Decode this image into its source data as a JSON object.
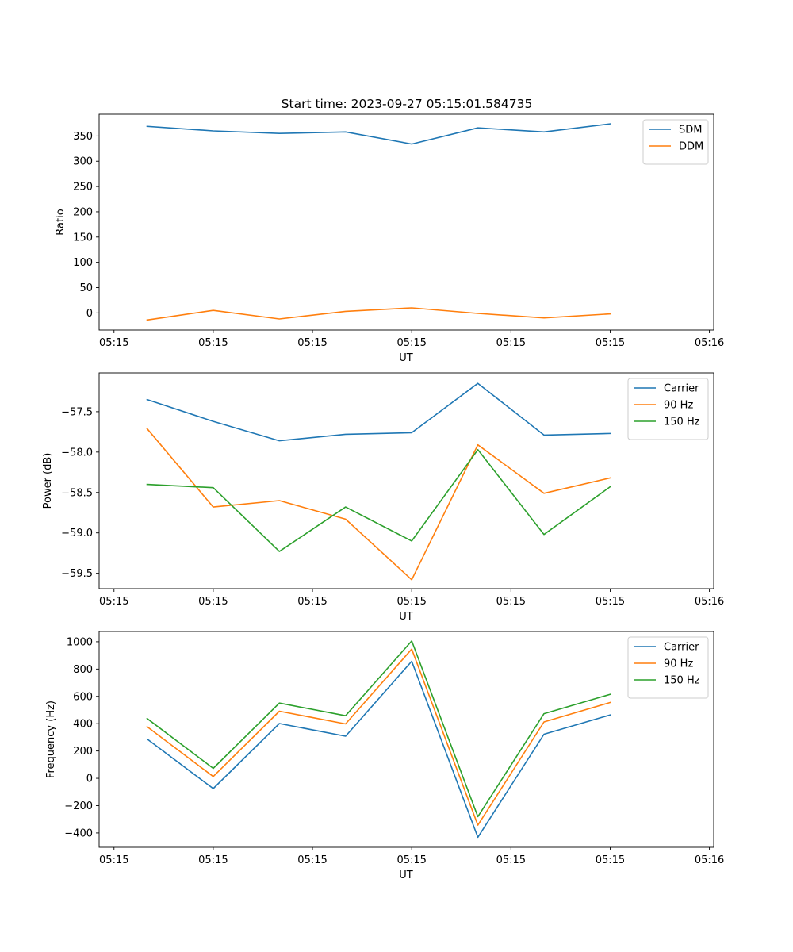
{
  "figure": {
    "title": "Start time: 2023-09-27 05:15:01.584735"
  },
  "chart_data": [
    {
      "type": "line",
      "title": "Start time: 2023-09-27 05:15:01.584735",
      "xlabel": "UT",
      "ylabel": "Ratio",
      "x": [
        1,
        2,
        3,
        4,
        5,
        6,
        7,
        8
      ],
      "xlim": [
        0.275,
        9.565
      ],
      "xticks": [
        0.5,
        2,
        3.5,
        5,
        6.5,
        8,
        9.5
      ],
      "xtick_labels": [
        "05:15",
        "05:15",
        "05:15",
        "05:15",
        "05:15",
        "05:15",
        "05:16"
      ],
      "ylim": [
        -34,
        393
      ],
      "yticks": [
        0,
        50,
        100,
        150,
        200,
        250,
        300,
        350
      ],
      "ytick_labels": [
        "0",
        "50",
        "100",
        "150",
        "200",
        "250",
        "300",
        "350"
      ],
      "legend": "top-right",
      "series": [
        {
          "name": "SDM",
          "color": "#1f77b4",
          "values": [
            369,
            360,
            355,
            358,
            334,
            366,
            358,
            374
          ]
        },
        {
          "name": "DDM",
          "color": "#ff7f0e",
          "values": [
            -14,
            5,
            -12,
            3,
            10,
            -1,
            -10,
            -2
          ]
        }
      ]
    },
    {
      "type": "line",
      "title": "",
      "xlabel": "UT",
      "ylabel": "Power (dB)",
      "x": [
        1,
        2,
        3,
        4,
        5,
        6,
        7,
        8
      ],
      "xlim": [
        0.275,
        9.565
      ],
      "xticks": [
        0.5,
        2,
        3.5,
        5,
        6.5,
        8,
        9.5
      ],
      "xtick_labels": [
        "05:15",
        "05:15",
        "05:15",
        "05:15",
        "05:15",
        "05:15",
        "05:16"
      ],
      "ylim": [
        -59.69,
        -57.02
      ],
      "yticks": [
        -59.5,
        -59.0,
        -58.5,
        -58.0,
        -57.5
      ],
      "ytick_labels": [
        "−59.5",
        "−59.0",
        "−58.5",
        "−58.0",
        "−57.5"
      ],
      "legend": "top-right",
      "series": [
        {
          "name": "Carrier",
          "color": "#1f77b4",
          "values": [
            -57.35,
            -57.62,
            -57.86,
            -57.78,
            -57.76,
            -57.15,
            -57.79,
            -57.77
          ]
        },
        {
          "name": "90 Hz",
          "color": "#ff7f0e",
          "values": [
            -57.71,
            -58.68,
            -58.6,
            -58.83,
            -59.58,
            -57.91,
            -58.51,
            -58.32
          ]
        },
        {
          "name": "150 Hz",
          "color": "#2ca02c",
          "values": [
            -58.4,
            -58.44,
            -59.23,
            -58.68,
            -59.1,
            -57.97,
            -59.02,
            -58.43
          ]
        }
      ]
    },
    {
      "type": "line",
      "title": "",
      "xlabel": "UT",
      "ylabel": "Frequency (Hz)",
      "x": [
        1,
        2,
        3,
        4,
        5,
        6,
        7,
        8
      ],
      "xlim": [
        0.275,
        9.565
      ],
      "xticks": [
        0.5,
        2,
        3.5,
        5,
        6.5,
        8,
        9.5
      ],
      "xtick_labels": [
        "05:15",
        "05:15",
        "05:15",
        "05:15",
        "05:15",
        "05:15",
        "05:16"
      ],
      "ylim": [
        -505,
        1075
      ],
      "yticks": [
        -400,
        -200,
        0,
        200,
        400,
        600,
        800,
        1000
      ],
      "ytick_labels": [
        "−400",
        "−200",
        "0",
        "200",
        "400",
        "600",
        "800",
        "1000"
      ],
      "legend": "top-right",
      "series": [
        {
          "name": "Carrier",
          "color": "#1f77b4",
          "values": [
            288,
            -75,
            401,
            308,
            857,
            -432,
            323,
            464
          ]
        },
        {
          "name": "90 Hz",
          "color": "#ff7f0e",
          "values": [
            378,
            13,
            491,
            398,
            946,
            -343,
            413,
            555
          ]
        },
        {
          "name": "150 Hz",
          "color": "#2ca02c",
          "values": [
            438,
            73,
            551,
            458,
            1006,
            -281,
            473,
            615
          ]
        }
      ]
    }
  ]
}
